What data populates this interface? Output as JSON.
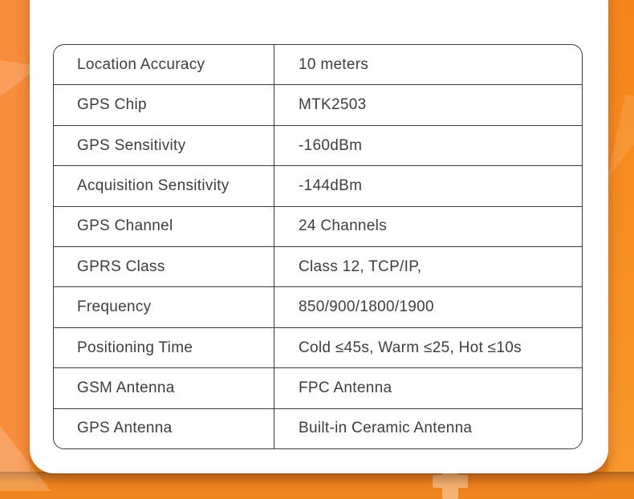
{
  "theme": {
    "background_orange": "#F0841E",
    "left_stripe_orange": "#F88D3C",
    "right_stripe_orange": "#F5861C",
    "card_background": "#FFFFFF",
    "table_border_color": "#3C3C3C",
    "table_text_color": "#3E3E3E",
    "plus_icon_color": "#FFFFFF"
  },
  "table": {
    "rows": [
      {
        "label": "Location Accuracy",
        "value": "10 meters"
      },
      {
        "label": "GPS Chip",
        "value": "MTK2503"
      },
      {
        "label": "GPS Sensitivity",
        "value": "-160dBm"
      },
      {
        "label": "Acquisition Sensitivity",
        "value": "-144dBm"
      },
      {
        "label": "GPS Channel",
        "value": "24 Channels"
      },
      {
        "label": "GPRS Class",
        "value": "Class 12, TCP/IP,"
      },
      {
        "label": "Frequency",
        "value": "850/900/1800/1900"
      },
      {
        "label": "Positioning Time",
        "value": "Cold ≤45s, Warm ≤25, Hot ≤10s"
      },
      {
        "label": "GSM Antenna",
        "value": "FPC Antenna"
      },
      {
        "label": "GPS Antenna",
        "value": "Built-in Ceramic Antenna"
      }
    ]
  }
}
